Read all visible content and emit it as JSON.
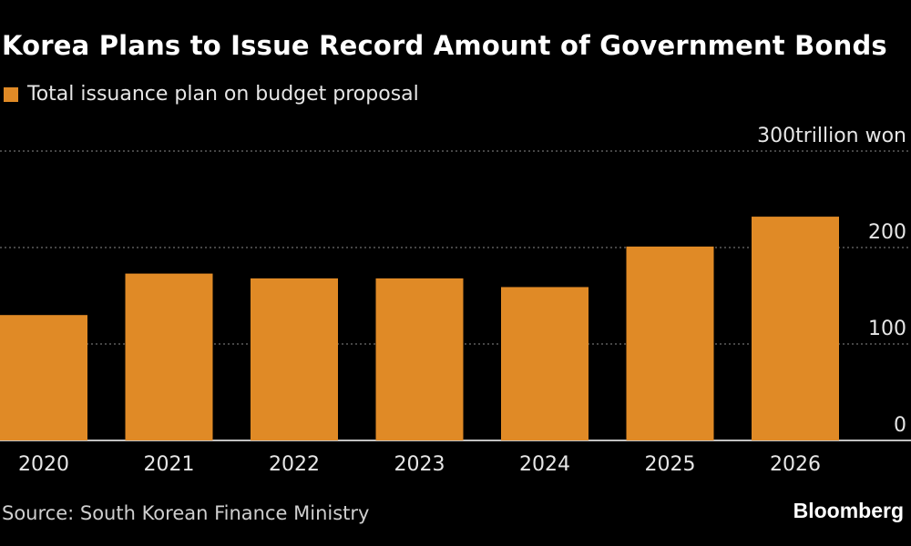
{
  "title": "Korea Plans to Issue Record Amount of Government Bonds",
  "source": "Source: South Korean Finance Ministry",
  "brand": "Bloomberg",
  "colors": {
    "bar": "#e08a26",
    "background": "#000000",
    "grid": "#8a8a8a"
  },
  "chart_data": {
    "type": "bar",
    "categories": [
      "2020",
      "2021",
      "2022",
      "2023",
      "2024",
      "2025",
      "2026"
    ],
    "series": [
      {
        "name": "Total issuance plan on budget proposal",
        "values": [
          130,
          173,
          168,
          168,
          159,
          201,
          232
        ]
      }
    ],
    "y_unit": "trillion won",
    "ylim": [
      0,
      300
    ],
    "yticks": [
      0,
      100,
      200,
      300
    ],
    "ytick_labels": [
      "0",
      "100",
      "200",
      "300trillion won"
    ],
    "grid": true,
    "legend_position": "top-left"
  }
}
